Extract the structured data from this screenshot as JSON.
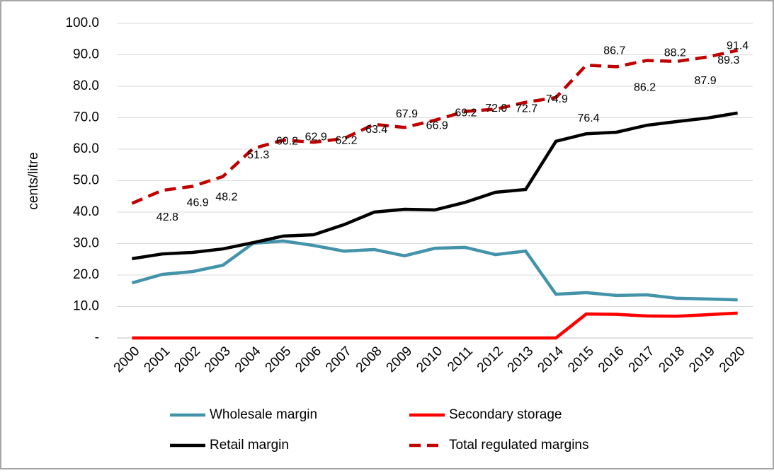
{
  "chart_data": {
    "type": "line",
    "y_label": "cents/litre",
    "categories": [
      "2000",
      "2001",
      "2002",
      "2003",
      "2004",
      "2005",
      "2006",
      "2007",
      "2008",
      "2009",
      "2010",
      "2011",
      "2012",
      "2013",
      "2014",
      "2015",
      "2016",
      "2017",
      "2018",
      "2019",
      "2020"
    ],
    "ylim": [
      0,
      100
    ],
    "yticks": [
      {
        "value": 0,
        "label": "-"
      },
      {
        "value": 10,
        "label": "10.0"
      },
      {
        "value": 20,
        "label": "20.0"
      },
      {
        "value": 30,
        "label": "30.0"
      },
      {
        "value": 40,
        "label": "40.0"
      },
      {
        "value": 50,
        "label": "50.0"
      },
      {
        "value": 60,
        "label": "60.0"
      },
      {
        "value": 70,
        "label": "70.0"
      },
      {
        "value": 80,
        "label": "80.0"
      },
      {
        "value": 90,
        "label": "90.0"
      },
      {
        "value": 100,
        "label": "100.0"
      }
    ],
    "grid": true,
    "legend": "bottom",
    "series": [
      {
        "name": "Wholesale margin",
        "color": "#4393ab",
        "dash": false,
        "values": [
          17.5,
          20.2,
          21.1,
          23.1,
          30.1,
          30.8,
          29.4,
          27.6,
          28.1,
          26.1,
          28.5,
          28.8,
          26.5,
          27.6,
          13.9,
          14.4,
          13.5,
          13.7,
          12.6,
          12.4,
          12.1
        ]
      },
      {
        "name": "Secondary storage",
        "color": "#ff0000",
        "dash": false,
        "values": [
          0,
          0,
          0,
          0,
          0,
          0,
          0,
          0,
          0,
          0,
          0,
          0,
          0,
          0,
          0,
          7.6,
          7.5,
          7.0,
          6.9,
          7.4,
          7.9
        ]
      },
      {
        "name": "Retail margin",
        "color": "#000000",
        "dash": false,
        "values": [
          25.2,
          26.7,
          27.2,
          28.3,
          30.3,
          32.4,
          32.8,
          36.0,
          40.0,
          40.9,
          40.7,
          43.1,
          46.3,
          47.2,
          62.5,
          64.9,
          65.4,
          67.6,
          68.8,
          69.9,
          71.5
        ]
      },
      {
        "name": "Total regulated margins",
        "color": "#c00000",
        "dash": true,
        "values": [
          42.8,
          46.9,
          48.2,
          51.3,
          60.2,
          62.9,
          62.2,
          63.4,
          67.9,
          66.9,
          69.2,
          72.0,
          72.7,
          74.9,
          76.4,
          86.7,
          86.2,
          88.2,
          87.9,
          89.3,
          91.4
        ],
        "value_labels": [
          "42.8",
          "46.9",
          "48.2",
          "51.3",
          "60.2",
          "62.9",
          "62.2",
          "63.4",
          "67.9",
          "66.9",
          "69.2",
          "72.0",
          "72.7",
          "74.9",
          "76.4",
          "86.7",
          "86.2",
          "88.2",
          "87.9",
          "89.3",
          "91.4"
        ]
      }
    ]
  }
}
